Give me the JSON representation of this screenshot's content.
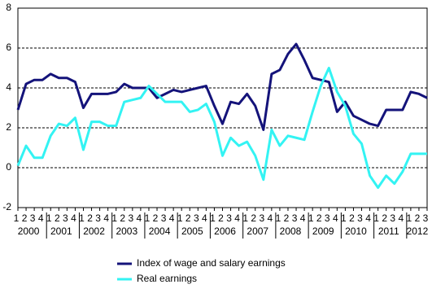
{
  "chart_data": {
    "type": "line",
    "categories": [
      "1",
      "2",
      "3",
      "4",
      "1",
      "2",
      "3",
      "4",
      "1",
      "2",
      "3",
      "4",
      "1",
      "2",
      "3",
      "4",
      "1",
      "2",
      "3",
      "4",
      "1",
      "2",
      "3",
      "4",
      "1",
      "2",
      "3",
      "4",
      "1",
      "2",
      "3",
      "4",
      "1",
      "2",
      "3",
      "4",
      "1",
      "2",
      "3",
      "4",
      "1",
      "2",
      "3",
      "4",
      "1",
      "2",
      "3",
      "4",
      "1",
      "2",
      "3"
    ],
    "years": [
      "2000",
      "2001",
      "2002",
      "2003",
      "2004",
      "2005",
      "2006",
      "2007",
      "2008",
      "2009",
      "2010",
      "2011",
      "2012"
    ],
    "series": [
      {
        "name": "Index of wage and salary earnings",
        "color": "#14137a",
        "values": [
          2.9,
          4.2,
          4.4,
          4.4,
          4.7,
          4.5,
          4.5,
          4.3,
          3.0,
          3.7,
          3.7,
          3.7,
          3.8,
          4.2,
          4.0,
          4.0,
          4.0,
          3.5,
          3.7,
          3.9,
          3.8,
          3.9,
          4.0,
          4.1,
          3.1,
          2.2,
          3.3,
          3.2,
          3.7,
          3.1,
          1.9,
          4.7,
          4.9,
          5.7,
          6.2,
          5.4,
          4.5,
          4.4,
          4.3,
          2.8,
          3.3,
          2.6,
          2.4,
          2.2,
          2.1,
          2.9,
          2.9,
          2.9,
          3.8,
          3.7,
          3.5
        ]
      },
      {
        "name": "Real earnings",
        "color": "#33f3f3",
        "values": [
          0.1,
          1.1,
          0.5,
          0.5,
          1.6,
          2.2,
          2.1,
          2.5,
          0.9,
          2.3,
          2.3,
          2.1,
          2.1,
          3.3,
          3.4,
          3.5,
          4.1,
          3.7,
          3.3,
          3.3,
          3.3,
          2.8,
          2.9,
          3.2,
          2.3,
          0.6,
          1.5,
          1.1,
          1.3,
          0.6,
          -0.6,
          1.9,
          1.1,
          1.6,
          1.5,
          1.4,
          2.8,
          4.1,
          5.0,
          3.8,
          3.1,
          1.7,
          1.2,
          -0.4,
          -1.0,
          -0.4,
          -0.8,
          -0.2,
          0.7,
          0.7,
          0.7
        ]
      }
    ],
    "ylim": [
      -2,
      8
    ],
    "yticks": [
      -2,
      0,
      2,
      4,
      6,
      8
    ],
    "grid": true
  }
}
